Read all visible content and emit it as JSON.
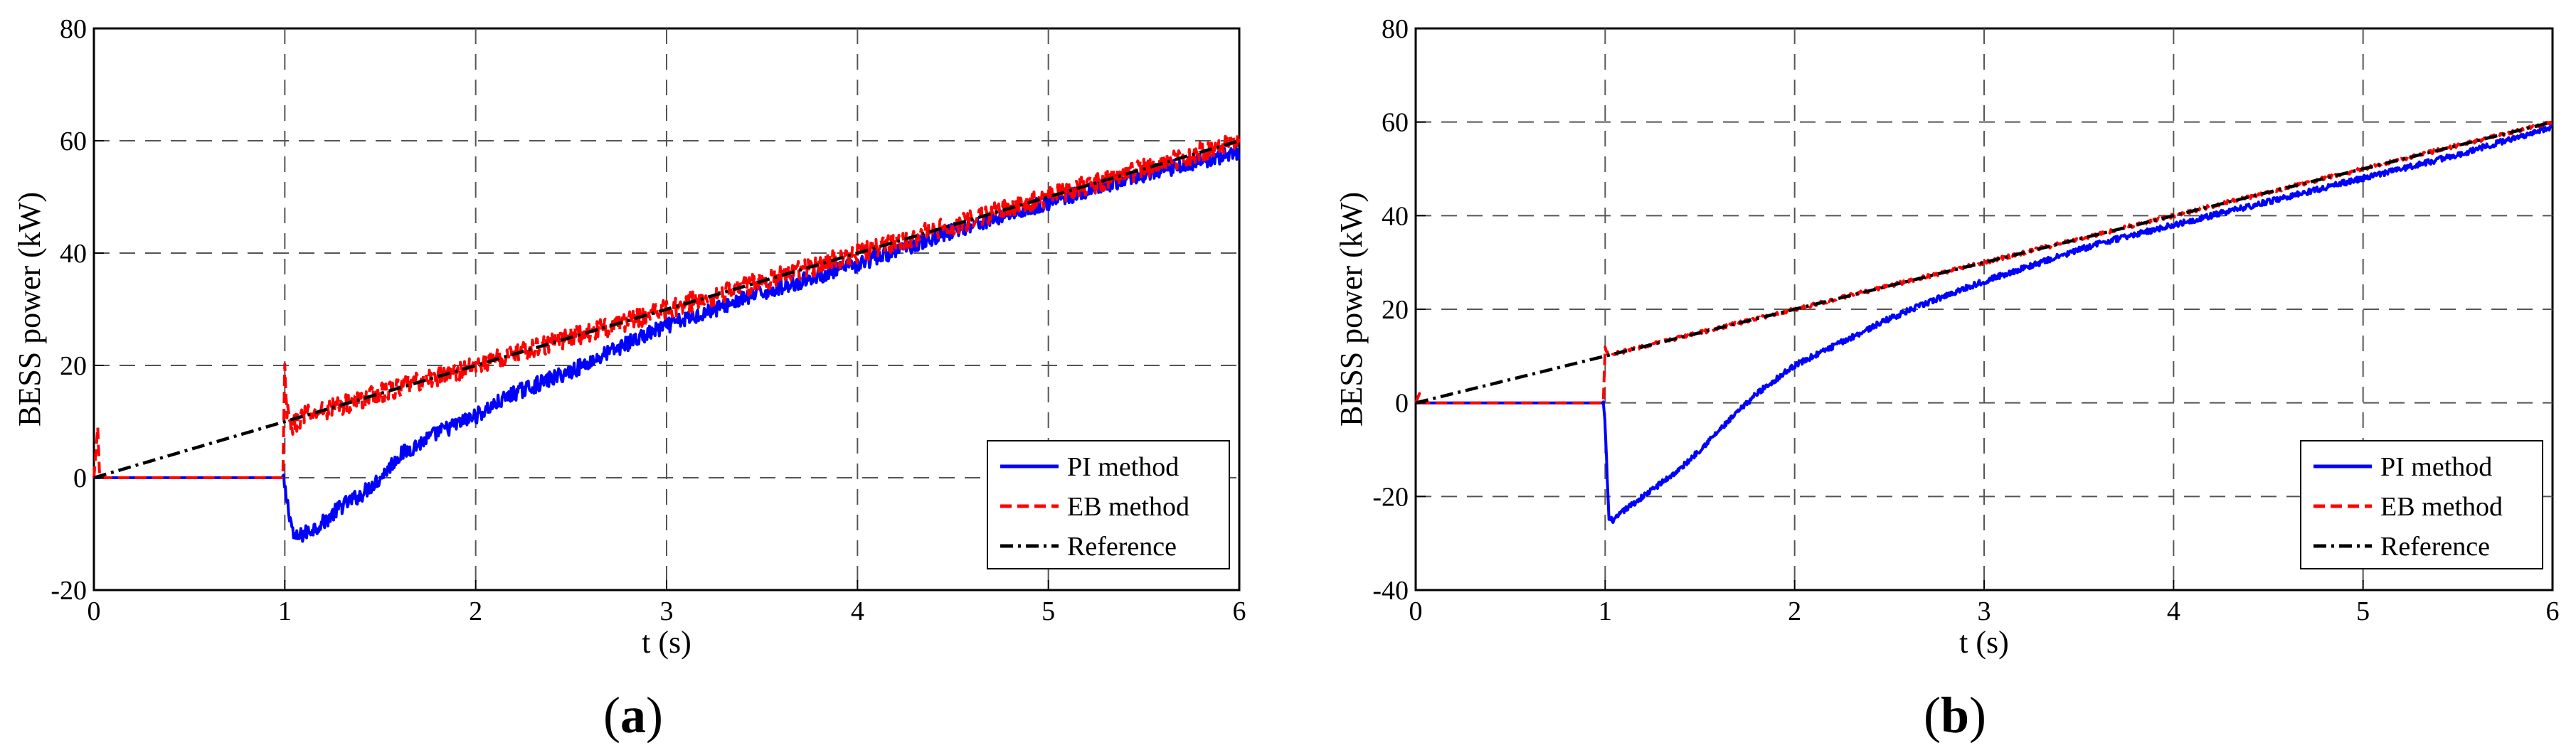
{
  "colors": {
    "pi": "#0000ff",
    "eb": "#ff0000",
    "ref": "#000000",
    "grid": "#555555"
  },
  "chart_data": [
    {
      "type": "line",
      "panel_label": "a",
      "xlabel": "t (s)",
      "ylabel": "BESS power (kW)",
      "xlim": [
        0,
        6
      ],
      "ylim": [
        -20,
        80
      ],
      "xticks": [
        0,
        1,
        2,
        3,
        4,
        5,
        6
      ],
      "yticks": [
        -20,
        0,
        20,
        40,
        60,
        80
      ],
      "legend": {
        "placement": "bottom-right",
        "entries": [
          "PI method",
          "EB method",
          "Reference"
        ]
      },
      "series": [
        {
          "name": "PI method",
          "x": [
            0,
            0.99,
            1.0,
            1.05,
            1.1,
            1.2,
            1.3,
            1.4,
            1.5,
            1.6,
            1.8,
            2.0,
            2.2,
            2.5,
            2.8,
            3.0,
            3.5,
            4.0,
            4.5,
            5.0,
            5.5,
            6.0
          ],
          "y": [
            0,
            0,
            -2,
            -11,
            -10,
            -8,
            -5,
            -3,
            0,
            4,
            8,
            11,
            15,
            19,
            24,
            27,
            33,
            38,
            44,
            49,
            54,
            58
          ],
          "noise": 1.4
        },
        {
          "name": "EB method",
          "x": [
            0,
            0.02,
            0.03,
            0.99,
            1.0,
            1.01,
            1.03,
            1.1,
            1.5,
            2.0,
            2.5,
            3.0,
            3.5,
            4.0,
            4.5,
            5.0,
            5.5,
            6.0
          ],
          "y": [
            0,
            9,
            0,
            0,
            19,
            12,
            9,
            11,
            15,
            20,
            25,
            30,
            35,
            40,
            45,
            50,
            55,
            60
          ],
          "noise": 1.8
        },
        {
          "name": "Reference",
          "x": [
            0,
            6
          ],
          "y": [
            0,
            60
          ]
        }
      ]
    },
    {
      "type": "line",
      "panel_label": "b",
      "xlabel": "t (s)",
      "ylabel": "BESS power (kW)",
      "xlim": [
        0,
        6
      ],
      "ylim": [
        -40,
        80
      ],
      "xticks": [
        0,
        1,
        2,
        3,
        4,
        5,
        6
      ],
      "yticks": [
        -40,
        -20,
        0,
        20,
        40,
        60,
        80
      ],
      "legend": {
        "placement": "bottom-right",
        "entries": [
          "PI method",
          "EB method",
          "Reference"
        ]
      },
      "series": [
        {
          "name": "PI method",
          "x": [
            0,
            0.99,
            1.0,
            1.02,
            1.05,
            1.1,
            1.2,
            1.4,
            1.6,
            1.8,
            2.0,
            2.2,
            2.5,
            2.8,
            3.0,
            3.3,
            3.6,
            4.0,
            4.5,
            5.0,
            5.5,
            6.0
          ],
          "y": [
            0,
            0,
            -5,
            -25,
            -25,
            -23,
            -20,
            -14,
            -6,
            2,
            8,
            12,
            18,
            23,
            26,
            30,
            34,
            38,
            43,
            48,
            53,
            59
          ],
          "noise": 0.6
        },
        {
          "name": "EB method",
          "x": [
            0,
            0.02,
            0.03,
            0.99,
            1.0,
            1.02,
            1.05,
            2.0,
            3.0,
            4.0,
            5.0,
            6.0
          ],
          "y": [
            0,
            2,
            0,
            0,
            12,
            10,
            10.5,
            20,
            30,
            40,
            50,
            60
          ],
          "noise": 0.4
        },
        {
          "name": "Reference",
          "x": [
            0,
            6
          ],
          "y": [
            0,
            60
          ]
        }
      ]
    }
  ]
}
